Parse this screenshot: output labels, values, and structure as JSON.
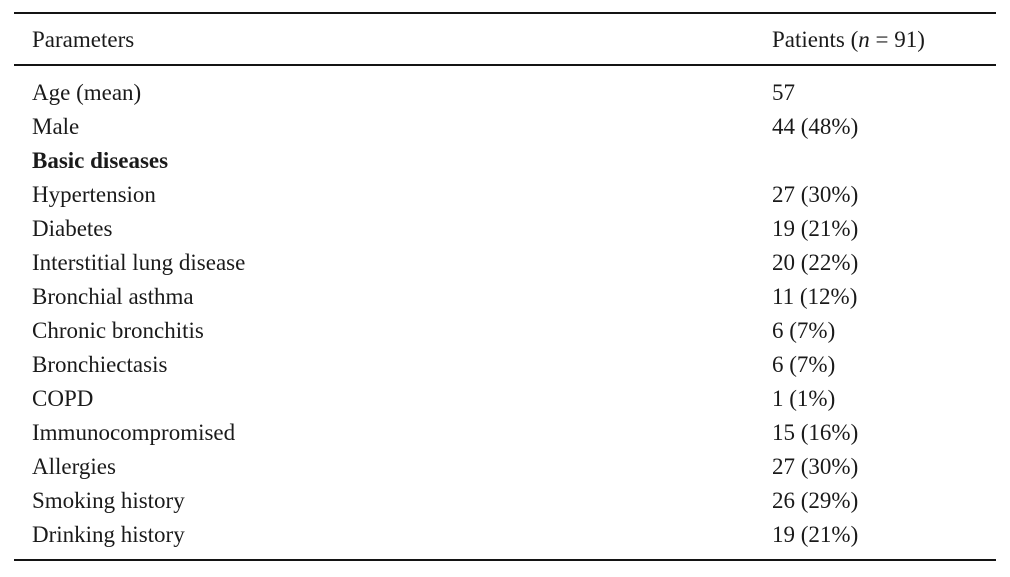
{
  "table": {
    "header": {
      "col1": "Parameters",
      "col2_prefix": "Patients (",
      "col2_n": "n",
      "col2_suffix": " = 91)"
    },
    "rows": [
      {
        "param": "Age (mean)",
        "value": "57"
      },
      {
        "param": "Male",
        "value": "44 (48%)"
      },
      {
        "param": "Basic diseases",
        "value": ""
      },
      {
        "param": "Hypertension",
        "value": "27 (30%)"
      },
      {
        "param": "Diabetes",
        "value": "19 (21%)"
      },
      {
        "param": "Interstitial lung disease",
        "value": "20 (22%)"
      },
      {
        "param": "Bronchial asthma",
        "value": "11 (12%)"
      },
      {
        "param": "Chronic bronchitis",
        "value": "6 (7%)"
      },
      {
        "param": "Bronchiectasis",
        "value": "6 (7%)"
      },
      {
        "param": "COPD",
        "value": "1 (1%)"
      },
      {
        "param": "Immunocompromised",
        "value": "15 (16%)"
      },
      {
        "param": "Allergies",
        "value": "27 (30%)"
      },
      {
        "param": "Smoking history",
        "value": "26 (29%)"
      },
      {
        "param": "Drinking history",
        "value": "19 (21%)"
      }
    ],
    "colors": {
      "text": "#1a1a1a",
      "rule": "#141414",
      "background": "#ffffff"
    }
  }
}
